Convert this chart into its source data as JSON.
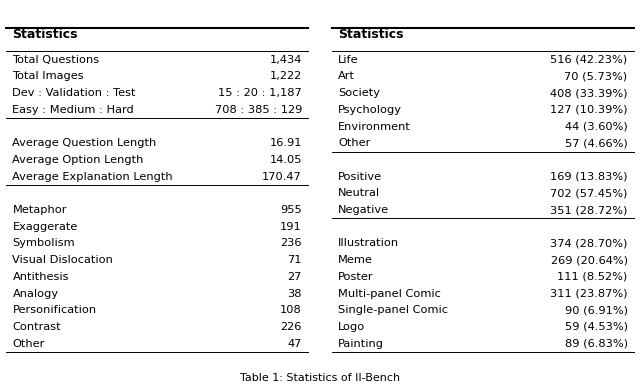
{
  "caption": "Table 1: Statistics of II-Bench",
  "left_table": {
    "header": "Statistics",
    "sections": [
      {
        "rows": [
          [
            "Total Questions",
            "1,434"
          ],
          [
            "Total Images",
            "1,222"
          ],
          [
            "Dev : Validation : Test",
            "15 : 20 : 1,187"
          ],
          [
            "Easy : Medium : Hard",
            "708 : 385 : 129"
          ]
        ]
      },
      {
        "rows": [
          [
            "Average Question Length",
            "16.91"
          ],
          [
            "Average Option Length",
            "14.05"
          ],
          [
            "Average Explanation Length",
            "170.47"
          ]
        ]
      },
      {
        "rows": [
          [
            "Metaphor",
            "955"
          ],
          [
            "Exaggerate",
            "191"
          ],
          [
            "Symbolism",
            "236"
          ],
          [
            "Visual Dislocation",
            "71"
          ],
          [
            "Antithesis",
            "27"
          ],
          [
            "Analogy",
            "38"
          ],
          [
            "Personification",
            "108"
          ],
          [
            "Contrast",
            "226"
          ],
          [
            "Other",
            "47"
          ]
        ]
      }
    ]
  },
  "right_table": {
    "header": "Statistics",
    "sections": [
      {
        "rows": [
          [
            "Life",
            "516 (42.23%)"
          ],
          [
            "Art",
            "70 (5.73%)"
          ],
          [
            "Society",
            "408 (33.39%)"
          ],
          [
            "Psychology",
            "127 (10.39%)"
          ],
          [
            "Environment",
            "44 (3.60%)"
          ],
          [
            "Other",
            "57 (4.66%)"
          ]
        ]
      },
      {
        "rows": [
          [
            "Positive",
            "169 (13.83%)"
          ],
          [
            "Neutral",
            "702 (57.45%)"
          ],
          [
            "Negative",
            "351 (28.72%)"
          ]
        ]
      },
      {
        "rows": [
          [
            "Illustration",
            "374 (28.70%)"
          ],
          [
            "Meme",
            "269 (20.64%)"
          ],
          [
            "Poster",
            "111 (8.52%)"
          ],
          [
            "Multi-panel Comic",
            "311 (23.87%)"
          ],
          [
            "Single-panel Comic",
            "90 (6.91%)"
          ],
          [
            "Logo",
            "59 (4.53%)"
          ],
          [
            "Painting",
            "89 (6.83%)"
          ]
        ]
      }
    ]
  },
  "bg_color": "#ffffff",
  "text_color": "#000000",
  "header_fontsize": 9,
  "row_fontsize": 8.2,
  "caption_fontsize": 8,
  "lw_thick": 1.5,
  "lw_thin": 0.7
}
